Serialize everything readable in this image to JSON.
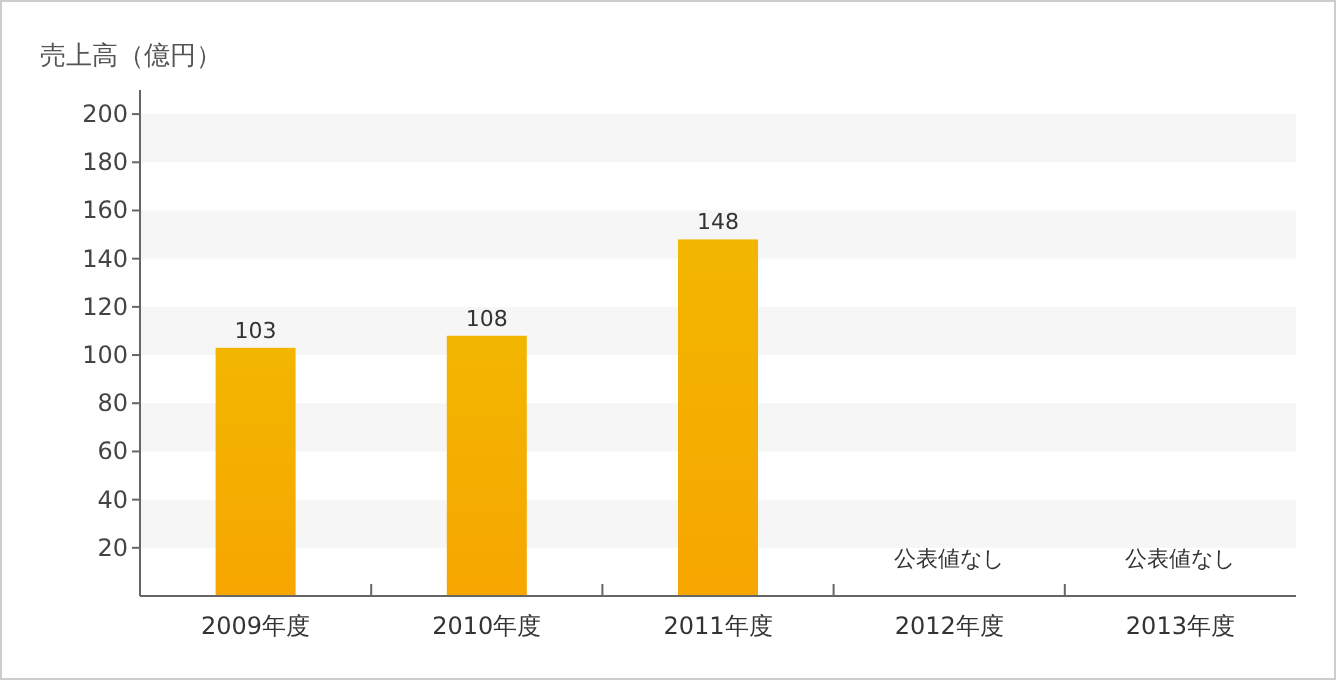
{
  "chart_data": {
    "type": "bar",
    "ylabel": "売上高（億円）",
    "categories": [
      "2009年度",
      "2010年度",
      "2011年度",
      "2012年度",
      "2013年度"
    ],
    "values": [
      103,
      108,
      148,
      null,
      null
    ],
    "value_labels": [
      "103",
      "108",
      "148",
      "公表値なし",
      "公表値なし"
    ],
    "color": "#f7a600",
    "ylim": [
      0,
      210
    ],
    "yticks": [
      20,
      40,
      60,
      80,
      100,
      120,
      140,
      160,
      180,
      200
    ],
    "bands": [
      {
        "axis": "y",
        "from": 20,
        "to": 40,
        "color": "#f6f6f6"
      },
      {
        "axis": "y",
        "from": 60,
        "to": 80,
        "color": "#f6f6f6"
      },
      {
        "axis": "y",
        "from": 100,
        "to": 120,
        "color": "#f6f6f6"
      },
      {
        "axis": "y",
        "from": 140,
        "to": 160,
        "color": "#f6f6f6"
      },
      {
        "axis": "y",
        "from": 180,
        "to": 200,
        "color": "#f6f6f6"
      }
    ],
    "grid": false
  }
}
